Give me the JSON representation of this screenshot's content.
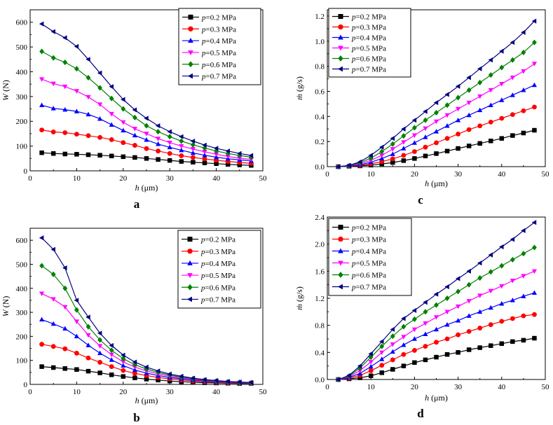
{
  "x_values": [
    2.5,
    5,
    7.5,
    10,
    12.5,
    15,
    17.5,
    20,
    22.5,
    25,
    27.5,
    30,
    32.5,
    35,
    37.5,
    40,
    42.5,
    45,
    47.5
  ],
  "colors": [
    "#000000",
    "#ff0000",
    "#0000ff",
    "#ff00ff",
    "#008000",
    "#000080"
  ],
  "markers": [
    "square",
    "circle",
    "triangle-up",
    "triangle-down",
    "diamond",
    "triangle-left"
  ],
  "chart_data": [
    {
      "panel_label": "a",
      "type": "line",
      "xlabel_var": "h",
      "xlabel_unit": " (μm)",
      "ylabel_var": "W",
      "ylabel_unit": " (N)",
      "xlim": [
        0,
        50
      ],
      "ylim": [
        0,
        650
      ],
      "xticks": [
        0,
        10,
        20,
        30,
        40,
        50
      ],
      "yticks": [
        0,
        100,
        200,
        300,
        400,
        500,
        600
      ],
      "legend_position": "top-right",
      "series": [
        {
          "name_var": "p",
          "name_rest": "=0.2 MPa",
          "values": [
            73,
            70,
            68,
            67,
            65,
            63,
            60,
            57,
            54,
            50,
            46,
            42,
            38,
            35,
            32,
            29,
            26,
            24,
            22
          ]
        },
        {
          "name_var": "p",
          "name_rest": "=0.3 MPa",
          "values": [
            165,
            157,
            154,
            148,
            142,
            135,
            126,
            114,
            103,
            90,
            80,
            70,
            61,
            54,
            48,
            43,
            38,
            34,
            30
          ]
        },
        {
          "name_var": "p",
          "name_rest": "=0.4 MPa",
          "values": [
            265,
            252,
            247,
            240,
            228,
            210,
            186,
            163,
            143,
            125,
            108,
            95,
            83,
            72,
            63,
            55,
            49,
            44,
            40
          ]
        },
        {
          "name_var": "p",
          "name_rest": "=0.5 MPa",
          "values": [
            370,
            352,
            340,
            322,
            298,
            268,
            230,
            196,
            170,
            150,
            130,
            114,
            100,
            88,
            77,
            67,
            58,
            51,
            46
          ]
        },
        {
          "name_var": "p",
          "name_rest": "=0.6 MPa",
          "values": [
            482,
            456,
            438,
            412,
            376,
            335,
            292,
            250,
            215,
            182,
            158,
            138,
            120,
            105,
            92,
            80,
            70,
            62,
            55
          ]
        },
        {
          "name_var": "p",
          "name_rest": "=0.7 MPa",
          "values": [
            593,
            562,
            537,
            502,
            450,
            395,
            340,
            288,
            246,
            212,
            182,
            158,
            138,
            120,
            104,
            91,
            80,
            70,
            62
          ]
        }
      ]
    },
    {
      "panel_label": "c",
      "type": "line",
      "xlabel_var": "h",
      "xlabel_unit": " (μm)",
      "ylabel_var": "ṁ",
      "ylabel_unit": " (g/s)",
      "xlim": [
        0,
        50
      ],
      "ylim": [
        0,
        1.25
      ],
      "xticks": [
        0,
        10,
        20,
        30,
        40,
        50
      ],
      "yticks": [
        0.0,
        0.2,
        0.4,
        0.6,
        0.8,
        1.0,
        1.2
      ],
      "ytick_decimals": 1,
      "legend_position": "top-left",
      "series": [
        {
          "name_var": "p",
          "name_rest": "=0.2 MPa",
          "values": [
            0.0,
            0.003,
            0.006,
            0.012,
            0.022,
            0.033,
            0.048,
            0.065,
            0.085,
            0.104,
            0.124,
            0.145,
            0.165,
            0.185,
            0.205,
            0.225,
            0.248,
            0.268,
            0.29
          ]
        },
        {
          "name_var": "p",
          "name_rest": "=0.3 MPa",
          "values": [
            0.0,
            0.004,
            0.01,
            0.023,
            0.04,
            0.062,
            0.09,
            0.12,
            0.155,
            0.19,
            0.225,
            0.26,
            0.295,
            0.325,
            0.355,
            0.385,
            0.415,
            0.445,
            0.475
          ]
        },
        {
          "name_var": "p",
          "name_rest": "=0.4 MPa",
          "values": [
            0.0,
            0.005,
            0.015,
            0.035,
            0.065,
            0.1,
            0.145,
            0.19,
            0.235,
            0.28,
            0.325,
            0.37,
            0.41,
            0.45,
            0.49,
            0.53,
            0.57,
            0.61,
            0.65
          ]
        },
        {
          "name_var": "p",
          "name_rest": "=0.5 MPa",
          "values": [
            0.0,
            0.007,
            0.022,
            0.05,
            0.09,
            0.14,
            0.195,
            0.25,
            0.305,
            0.36,
            0.41,
            0.46,
            0.51,
            0.56,
            0.61,
            0.66,
            0.71,
            0.76,
            0.82
          ]
        },
        {
          "name_var": "p",
          "name_rest": "=0.6 MPa",
          "values": [
            0.0,
            0.008,
            0.03,
            0.068,
            0.12,
            0.18,
            0.245,
            0.31,
            0.37,
            0.43,
            0.49,
            0.55,
            0.61,
            0.67,
            0.73,
            0.79,
            0.85,
            0.91,
            0.99
          ]
        },
        {
          "name_var": "p",
          "name_rest": "=0.7 MPa",
          "values": [
            0.0,
            0.01,
            0.038,
            0.09,
            0.155,
            0.225,
            0.3,
            0.37,
            0.44,
            0.51,
            0.575,
            0.64,
            0.71,
            0.78,
            0.85,
            0.92,
            0.99,
            1.07,
            1.16
          ]
        }
      ]
    },
    {
      "panel_label": "b",
      "type": "line",
      "xlabel_var": "h",
      "xlabel_unit": " (μm)",
      "ylabel_var": "W",
      "ylabel_unit": " (N)",
      "xlim": [
        0,
        50
      ],
      "ylim": [
        0,
        650
      ],
      "xticks": [
        0,
        10,
        20,
        30,
        40,
        50
      ],
      "yticks": [
        0,
        100,
        200,
        300,
        400,
        500,
        600
      ],
      "legend_position": "top-right",
      "series": [
        {
          "name_var": "p",
          "name_rest": "=0.2 MPa",
          "values": [
            74,
            70,
            66,
            62,
            55,
            48,
            40,
            33,
            27,
            22,
            18,
            14,
            11,
            9,
            7,
            6,
            5,
            4,
            4
          ]
        },
        {
          "name_var": "p",
          "name_rest": "=0.3 MPa",
          "values": [
            167,
            158,
            148,
            130,
            110,
            92,
            74,
            58,
            46,
            37,
            29,
            23,
            18,
            14,
            11,
            9,
            7,
            6,
            5
          ]
        },
        {
          "name_var": "p",
          "name_rest": "=0.4 MPa",
          "values": [
            270,
            252,
            232,
            200,
            163,
            130,
            102,
            78,
            60,
            47,
            37,
            29,
            23,
            18,
            14,
            11,
            9,
            7,
            6
          ]
        },
        {
          "name_var": "p",
          "name_rest": "=0.5 MPa",
          "values": [
            378,
            355,
            322,
            262,
            205,
            160,
            124,
            94,
            72,
            56,
            44,
            34,
            27,
            21,
            16,
            13,
            10,
            8,
            7
          ]
        },
        {
          "name_var": "p",
          "name_rest": "=0.6 MPa",
          "values": [
            494,
            458,
            400,
            310,
            240,
            185,
            142,
            107,
            82,
            64,
            50,
            39,
            30,
            24,
            18,
            14,
            11,
            9,
            7
          ]
        },
        {
          "name_var": "p",
          "name_rest": "=0.7 MPa",
          "values": [
            610,
            562,
            485,
            350,
            280,
            213,
            162,
            122,
            93,
            72,
            56,
            43,
            34,
            26,
            20,
            16,
            12,
            10,
            8
          ]
        }
      ]
    },
    {
      "panel_label": "d",
      "type": "line",
      "xlabel_var": "h",
      "xlabel_unit": " (μm)",
      "ylabel_var": "ṁ",
      "ylabel_unit": " (g/s)",
      "xlim": [
        0,
        50
      ],
      "ylim": [
        0,
        2.4
      ],
      "xticks": [
        0,
        10,
        20,
        30,
        40,
        50
      ],
      "yticks": [
        0.0,
        0.4,
        0.8,
        1.2,
        1.6,
        2.0,
        2.4
      ],
      "ytick_decimals": 1,
      "legend_position": "top-left",
      "series": [
        {
          "name_var": "p",
          "name_rest": "=0.2 MPa",
          "values": [
            0.0,
            0.01,
            0.025,
            0.055,
            0.1,
            0.15,
            0.2,
            0.25,
            0.29,
            0.33,
            0.37,
            0.4,
            0.44,
            0.47,
            0.5,
            0.53,
            0.56,
            0.58,
            0.61
          ]
        },
        {
          "name_var": "p",
          "name_rest": "=0.3 MPa",
          "values": [
            0.0,
            0.02,
            0.06,
            0.13,
            0.21,
            0.29,
            0.37,
            0.43,
            0.49,
            0.55,
            0.6,
            0.66,
            0.71,
            0.76,
            0.81,
            0.86,
            0.9,
            0.94,
            0.96
          ]
        },
        {
          "name_var": "p",
          "name_rest": "=0.4 MPa",
          "values": [
            0.0,
            0.03,
            0.09,
            0.19,
            0.3,
            0.41,
            0.51,
            0.6,
            0.67,
            0.74,
            0.81,
            0.87,
            0.94,
            1.0,
            1.06,
            1.12,
            1.17,
            1.23,
            1.28
          ]
        },
        {
          "name_var": "p",
          "name_rest": "=0.5 MPa",
          "values": [
            0.0,
            0.04,
            0.13,
            0.26,
            0.4,
            0.52,
            0.63,
            0.74,
            0.83,
            0.92,
            1.0,
            1.08,
            1.16,
            1.24,
            1.31,
            1.38,
            1.46,
            1.53,
            1.6
          ]
        },
        {
          "name_var": "p",
          "name_rest": "=0.6 MPa",
          "values": [
            0.0,
            0.05,
            0.17,
            0.33,
            0.49,
            0.64,
            0.78,
            0.89,
            1.0,
            1.1,
            1.2,
            1.3,
            1.4,
            1.5,
            1.59,
            1.68,
            1.77,
            1.86,
            1.95
          ]
        },
        {
          "name_var": "p",
          "name_rest": "=0.7 MPa",
          "values": [
            0.0,
            0.06,
            0.2,
            0.38,
            0.56,
            0.74,
            0.9,
            1.02,
            1.14,
            1.26,
            1.37,
            1.49,
            1.6,
            1.72,
            1.84,
            1.96,
            2.07,
            2.2,
            2.32
          ]
        }
      ]
    }
  ]
}
